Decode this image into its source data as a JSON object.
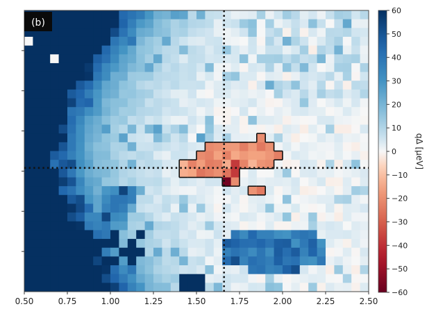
{
  "chart_data": {
    "type": "heatmap",
    "panel_label": "(b)",
    "colorbar_label": "qΔ [μeV]",
    "colormap": "RdBu",
    "vmin": -60,
    "vmax": 60,
    "colorbar_ticks": [
      60,
      50,
      40,
      30,
      20,
      10,
      0,
      -10,
      -20,
      -30,
      -40,
      -50,
      -60
    ],
    "colorbar_tick_labels": [
      "60",
      "50",
      "40",
      "30",
      "20",
      "10",
      "0",
      "−10",
      "−20",
      "−30",
      "−40",
      "−50",
      "−60"
    ],
    "xlim": [
      0.5,
      2.5
    ],
    "x_ticks": [
      0.5,
      0.75,
      1.0,
      1.25,
      1.5,
      1.75,
      2.0,
      2.25,
      2.5
    ],
    "x_tick_labels": [
      "0.50",
      "0.75",
      "1.00",
      "1.25",
      "1.50",
      "1.75",
      "2.00",
      "2.25",
      "2.50"
    ],
    "y_tick_count": 6,
    "crosshair_x": 1.66,
    "crosshair_y_fraction": 0.56,
    "grid_cols": 40,
    "grid_rows": 32,
    "negative_region_outlined": true
  }
}
